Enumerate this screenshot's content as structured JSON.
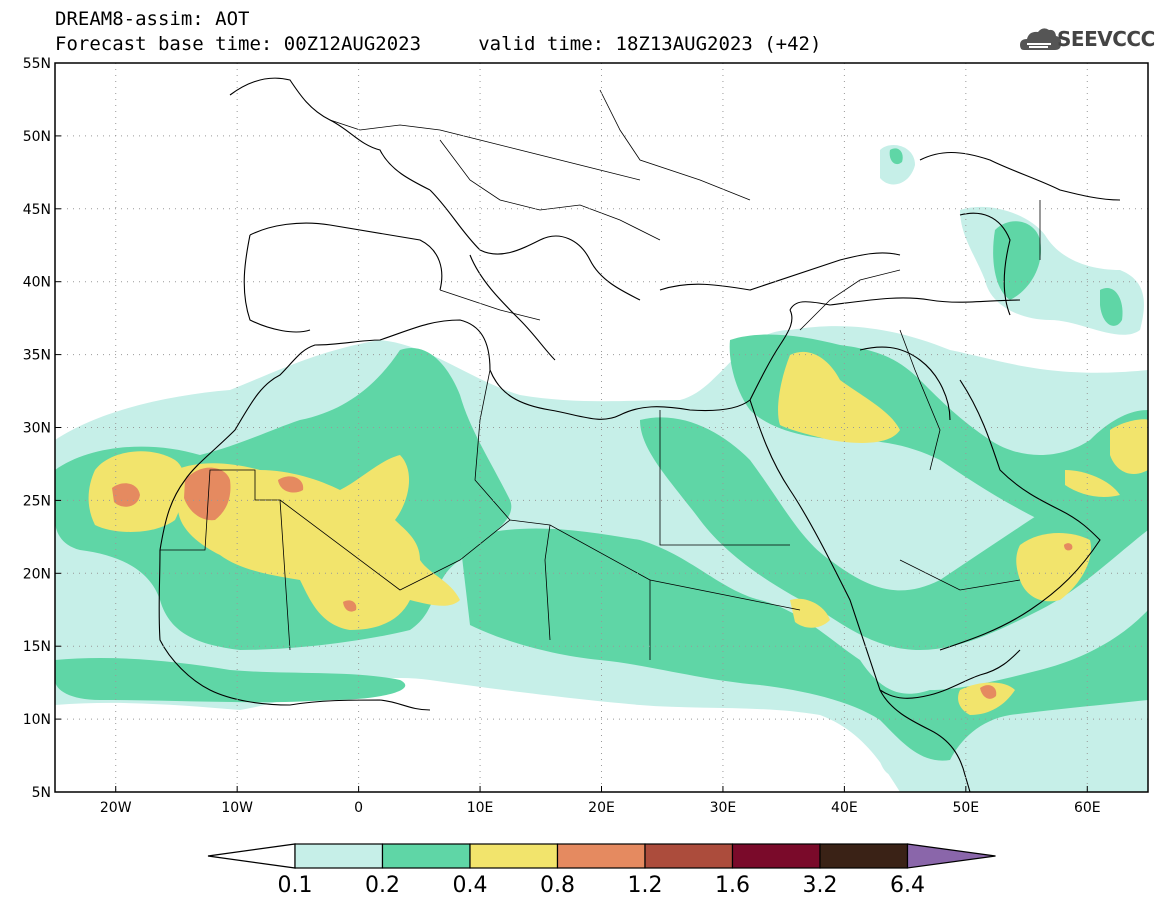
{
  "header": {
    "line1": "DREAM8-assim: AOT",
    "line2": "Forecast base time: 00Z12AUG2023     valid time: 18Z13AUG2023 (+42)"
  },
  "logo": {
    "text": "SEEVCCC",
    "icon": "cloud-icon"
  },
  "map": {
    "projection": "lat-lon",
    "lon_range": [
      -25,
      65
    ],
    "lat_range": [
      5,
      55
    ],
    "x_ticks": [
      {
        "lon": -20,
        "label": "20W"
      },
      {
        "lon": -10,
        "label": "10W"
      },
      {
        "lon": 0,
        "label": "0"
      },
      {
        "lon": 10,
        "label": "10E"
      },
      {
        "lon": 20,
        "label": "20E"
      },
      {
        "lon": 30,
        "label": "30E"
      },
      {
        "lon": 40,
        "label": "40E"
      },
      {
        "lon": 50,
        "label": "50E"
      },
      {
        "lon": 60,
        "label": "60E"
      }
    ],
    "y_ticks": [
      {
        "lat": 55,
        "label": "55N"
      },
      {
        "lat": 50,
        "label": "50N"
      },
      {
        "lat": 45,
        "label": "45N"
      },
      {
        "lat": 40,
        "label": "40N"
      },
      {
        "lat": 35,
        "label": "35N"
      },
      {
        "lat": 30,
        "label": "30N"
      },
      {
        "lat": 25,
        "label": "25N"
      },
      {
        "lat": 20,
        "label": "20N"
      },
      {
        "lat": 15,
        "label": "15N"
      },
      {
        "lat": 10,
        "label": "10N"
      },
      {
        "lat": 5,
        "label": "5N"
      }
    ],
    "grid": "dotted"
  },
  "colorbar": {
    "levels": [
      "0.1",
      "0.2",
      "0.4",
      "0.8",
      "1.2",
      "1.6",
      "3.2",
      "6.4"
    ],
    "colors": [
      "#c6efe8",
      "#5fd6a6",
      "#f2e46c",
      "#e58a60",
      "#ac4c3c",
      "#7a0a2a",
      "#3a2216",
      "#8a66aa"
    ],
    "under_color": "#ffffff"
  }
}
